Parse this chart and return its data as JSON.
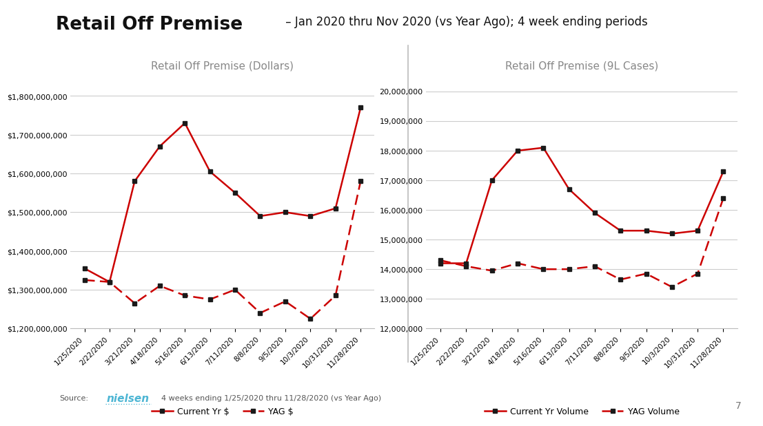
{
  "title_bold": "Retail Off Premise",
  "title_regular": " – Jan 2020 thru Nov 2020 (vs Year Ago); 4 week ending periods",
  "left_subtitle": "Retail Off Premise (Dollars)",
  "right_subtitle": "Retail Off Premise (9L Cases)",
  "x_labels": [
    "1/25/2020",
    "2/22/2020",
    "3/21/2020",
    "4/18/2020",
    "5/16/2020",
    "6/13/2020",
    "7/11/2020",
    "8/8/2020",
    "9/5/2020",
    "10/3/2020",
    "10/31/2020",
    "11/28/2020"
  ],
  "dollars_current": [
    1355000000,
    1320000000,
    1580000000,
    1670000000,
    1730000000,
    1605000000,
    1550000000,
    1490000000,
    1500000000,
    1490000000,
    1510000000,
    1770000000
  ],
  "dollars_yag": [
    1325000000,
    1320000000,
    1265000000,
    1310000000,
    1285000000,
    1275000000,
    1300000000,
    1240000000,
    1270000000,
    1225000000,
    1285000000,
    1580000000
  ],
  "cases_current": [
    14200000,
    14200000,
    17000000,
    18000000,
    18100000,
    16700000,
    15900000,
    15300000,
    15300000,
    15200000,
    15300000,
    17300000
  ],
  "cases_yag": [
    14300000,
    14100000,
    13950000,
    14200000,
    14000000,
    14000000,
    14100000,
    13650000,
    13850000,
    13400000,
    13850000,
    16400000
  ],
  "dollars_ylim": [
    1200000000,
    1850000000
  ],
  "dollars_yticks": [
    1200000000,
    1300000000,
    1400000000,
    1500000000,
    1600000000,
    1700000000,
    1800000000
  ],
  "cases_ylim": [
    12000000,
    20500000
  ],
  "cases_yticks": [
    12000000,
    13000000,
    14000000,
    15000000,
    16000000,
    17000000,
    18000000,
    19000000,
    20000000
  ],
  "line_color": "#CC0000",
  "marker_color": "#1a1a1a",
  "bg_color": "#ffffff",
  "grid_color": "#cccccc",
  "legend_current_label_left": "Current Yr $",
  "legend_yag_label_left": "YAG $",
  "legend_current_label_right": "Current Yr Volume",
  "legend_yag_label_right": "YAG Volume",
  "source_text": "4 weeks ending 1/25/2020 thru 11/28/2020 (vs Year Ago)",
  "nielsen_color": "#4eb6d4",
  "page_number": "7",
  "logo_bg": "#1a9bbf"
}
